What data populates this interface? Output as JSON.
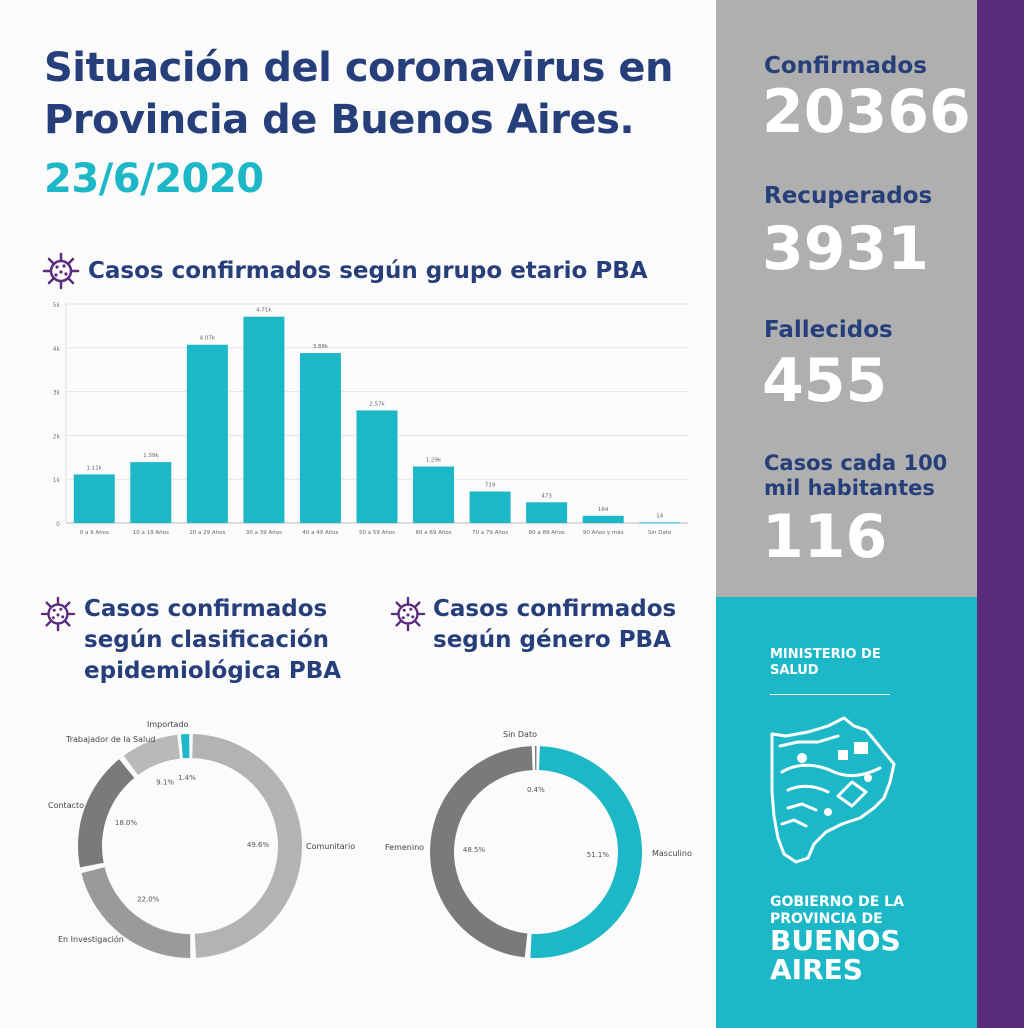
{
  "header": {
    "title": "Situación del coronavirus en Provincia de Buenos Aires.",
    "date": "23/6/2020"
  },
  "sections": {
    "age_title": "Casos confirmados según grupo etario PBA",
    "class_title": "Casos confirmados según clasificación epidemiológica PBA",
    "gender_title": "Casos confirmados según género PBA"
  },
  "stats": [
    {
      "label": "Confirmados",
      "value": "20366"
    },
    {
      "label": "Recuperados",
      "value": "3931"
    },
    {
      "label": "Fallecidos",
      "value": "455"
    },
    {
      "label": "Casos cada 100 mil habitantes",
      "value": "116"
    }
  ],
  "brand": {
    "ministerio": "MINISTERIO DE SALUD",
    "gobierno": "GOBIERNO DE LA PROVINCIA DE",
    "buenos_aires": "BUENOS AIRES"
  },
  "colors": {
    "navy": "#263f7a",
    "teal": "#1db8c7",
    "purple": "#5b2b7c",
    "grey_panel": "#afafaf"
  },
  "chart_data": [
    {
      "type": "bar",
      "categories": [
        "0 a 9 Años",
        "10 a 19 Años",
        "20 a 29 Años",
        "30 a 39 Años",
        "40 a 49 Años",
        "50 a 59 Años",
        "60 a 69 Años",
        "70 a 79 Años",
        "80 a 89 Años",
        "90 Años y más",
        "Sin Dato"
      ],
      "values": [
        1110,
        1390,
        4070,
        4710,
        3880,
        2570,
        1290,
        719,
        473,
        164,
        14
      ],
      "value_labels": [
        "1.11k",
        "1.39k",
        "4.07k",
        "4.71k",
        "3.88k",
        "2.57k",
        "1.29k",
        "719",
        "473",
        "164",
        "14"
      ],
      "ylim": [
        0,
        5000
      ],
      "ytick_labels": [
        "0",
        "1k",
        "2k",
        "3k",
        "4k",
        "5k"
      ],
      "grid": true,
      "color": "#1db8c7"
    },
    {
      "type": "pie",
      "donut": true,
      "labels": [
        "Comunitario",
        "En Investigación",
        "Contacto",
        "Trabajador de la Salud",
        "Importado"
      ],
      "values": [
        49.6,
        22.0,
        18.0,
        9.1,
        1.4
      ],
      "value_labels": [
        "49.6%",
        "22.0%",
        "18.0%",
        "9.1%",
        "1.4%"
      ],
      "colors": [
        "#b3b3b3",
        "#9a9a9a",
        "#7a7a7a",
        "#b9b9b9",
        "#1db8c7"
      ]
    },
    {
      "type": "pie",
      "donut": true,
      "labels": [
        "Masculino",
        "Femenino",
        "Sin Dato"
      ],
      "values": [
        51.1,
        48.5,
        0.4
      ],
      "value_labels": [
        "51.1%",
        "48.5%",
        "0.4%"
      ],
      "colors": [
        "#1db8c7",
        "#7a7a7a",
        "#555555"
      ]
    }
  ]
}
